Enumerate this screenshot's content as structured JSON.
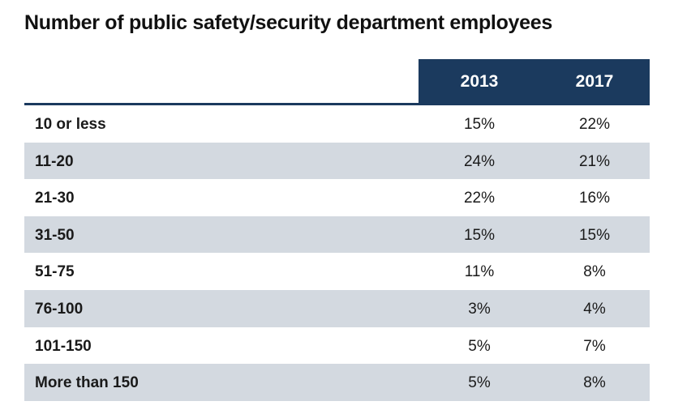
{
  "chart_data": {
    "type": "table",
    "title": "Number of public safety/security department employees",
    "columns": [
      "2013",
      "2017"
    ],
    "rows": [
      {
        "label": "10 or less",
        "values": [
          "15%",
          "22%"
        ]
      },
      {
        "label": "11-20",
        "values": [
          "24%",
          "21%"
        ]
      },
      {
        "label": "21-30",
        "values": [
          "22%",
          "16%"
        ]
      },
      {
        "label": "31-50",
        "values": [
          "15%",
          "15%"
        ]
      },
      {
        "label": "51-75",
        "values": [
          "11%",
          "8%"
        ]
      },
      {
        "label": "76-100",
        "values": [
          "3%",
          "4%"
        ]
      },
      {
        "label": "101-150",
        "values": [
          "5%",
          "7%"
        ]
      },
      {
        "label": "More than 150",
        "values": [
          "5%",
          "8%"
        ]
      }
    ],
    "colors": {
      "header": "#1b3a5e",
      "shaded_row": "#d3d9e0"
    }
  }
}
